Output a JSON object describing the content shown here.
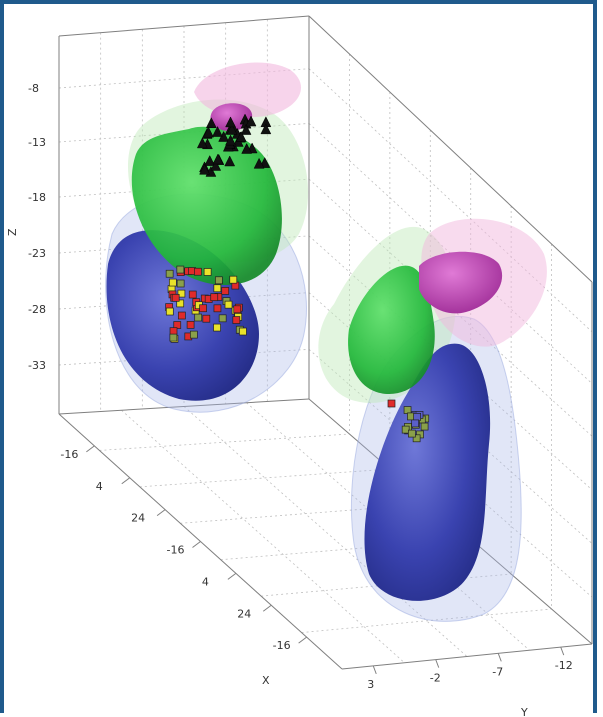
{
  "chart_data": {
    "type": "scatter3d",
    "title": "",
    "axes": {
      "z": {
        "label": "Z",
        "ticks": [
          "-8",
          "-13",
          "-18",
          "-23",
          "-28",
          "-33"
        ]
      },
      "x": {
        "label": "X",
        "ticks": [
          "-16",
          "4",
          "24",
          "-16",
          "4",
          "24",
          "-16"
        ]
      },
      "y": {
        "label": "Y",
        "ticks": [
          "3",
          "-2",
          "-7",
          "-12"
        ]
      }
    },
    "grid": true,
    "legend": "none",
    "surfaces": [
      {
        "name_hint": "blue-structure",
        "color": "#3a43b0"
      },
      {
        "name_hint": "green-structure",
        "color": "#22b83a"
      },
      {
        "name_hint": "magenta-structure",
        "color": "#c13fb8"
      },
      {
        "name_hint": "pale-blue-envelope",
        "color": "#aab8e8"
      },
      {
        "name_hint": "pale-green-envelope",
        "color": "#bfe9b8"
      },
      {
        "name_hint": "pale-pink-envelope",
        "color": "#f1b7de"
      }
    ],
    "marker_sets": [
      {
        "shape": "triangle",
        "color": "#111111",
        "cluster": "upper-left"
      },
      {
        "shape": "square",
        "color": "#e02a2a",
        "cluster": "lower-left"
      },
      {
        "shape": "square",
        "color": "#e9e22a",
        "cluster": "lower-left"
      },
      {
        "shape": "square",
        "color": "#8aa04a",
        "cluster": "lower-left"
      },
      {
        "shape": "square",
        "color": "#8aa04a",
        "cluster": "right"
      },
      {
        "shape": "square",
        "color": "#e02a2a",
        "cluster": "right"
      }
    ]
  }
}
